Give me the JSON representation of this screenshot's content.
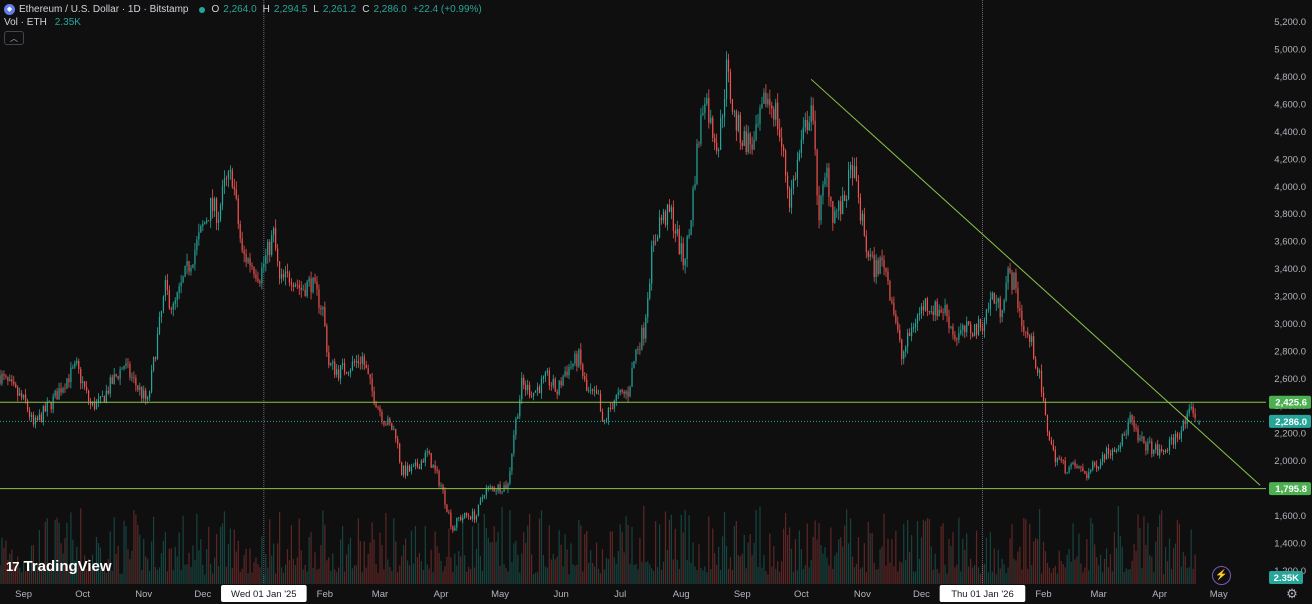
{
  "header": {
    "title": "Ethereum / U.S. Dollar · 1D · Bitstamp",
    "ohlc": [
      {
        "key": "O",
        "value": "2,264.0"
      },
      {
        "key": "H",
        "value": "2,294.5"
      },
      {
        "key": "L",
        "value": "2,261.2"
      },
      {
        "key": "C",
        "value": "2,286.0"
      },
      {
        "key": "",
        "value": "+22.4 (+0.99%)"
      }
    ],
    "volume_label": "Vol · ETH",
    "volume_value": "2.35K"
  },
  "branding": {
    "logo_text": "TradingView",
    "logo_mark": "17"
  },
  "colors": {
    "background": "#0f0f0f",
    "up": "#26a69a",
    "down": "#ef5350",
    "line": "#8bc34a",
    "axis_text": "#b2b5be"
  },
  "chart_data": {
    "type": "candlestick",
    "symbol": "ETHUSD",
    "interval": "1D",
    "exchange": "Bitstamp",
    "ylim": [
      1100,
      5300
    ],
    "y_ticks": [
      1200,
      1400,
      1600,
      1800,
      2000,
      2200,
      2400,
      2600,
      2800,
      3000,
      3200,
      3400,
      3600,
      3800,
      4000,
      4200,
      4400,
      4600,
      4800,
      5000,
      5200
    ],
    "y_tick_labels": [
      "1,200.0",
      "1,400.0",
      "1,600.0",
      "1,800.0",
      "2,000.0",
      "2,200.0",
      "2,400.0",
      "2,600.0",
      "2,800.0",
      "3,000.0",
      "3,200.0",
      "3,400.0",
      "3,600.0",
      "3,800.0",
      "4,000.0",
      "4,200.0",
      "4,400.0",
      "4,600.0",
      "4,800.0",
      "5,000.0",
      "5,200.0"
    ],
    "x_ticks": [
      {
        "label": "Sep",
        "date": "2024-09-01"
      },
      {
        "label": "Oct",
        "date": "2024-10-01"
      },
      {
        "label": "Nov",
        "date": "2024-11-01"
      },
      {
        "label": "Dec",
        "date": "2024-12-01"
      },
      {
        "label": "Wed 01 Jan '25",
        "date": "2025-01-01",
        "highlight": true
      },
      {
        "label": "Feb",
        "date": "2025-02-01"
      },
      {
        "label": "Mar",
        "date": "2025-03-01"
      },
      {
        "label": "Apr",
        "date": "2025-04-01"
      },
      {
        "label": "May",
        "date": "2025-05-01"
      },
      {
        "label": "Jun",
        "date": "2025-06-01"
      },
      {
        "label": "Jul",
        "date": "2025-07-01"
      },
      {
        "label": "Aug",
        "date": "2025-08-01"
      },
      {
        "label": "Sep",
        "date": "2025-09-01"
      },
      {
        "label": "Oct",
        "date": "2025-10-01"
      },
      {
        "label": "Nov",
        "date": "2025-11-01"
      },
      {
        "label": "Dec",
        "date": "2025-12-01"
      },
      {
        "label": "Thu 01 Jan '26",
        "date": "2026-01-01",
        "highlight": true
      },
      {
        "label": "Feb",
        "date": "2026-02-01"
      },
      {
        "label": "Mar",
        "date": "2026-03-01"
      },
      {
        "label": "Apr",
        "date": "2026-04-01"
      },
      {
        "label": "May",
        "date": "2026-05-01"
      }
    ],
    "x_range": [
      "2024-08-20",
      "2026-05-25"
    ],
    "close_path": [
      [
        "2024-08-20",
        2620
      ],
      [
        "2024-09-02",
        2420
      ],
      [
        "2024-09-06",
        2250
      ],
      [
        "2024-09-15",
        2420
      ],
      [
        "2024-09-23",
        2600
      ],
      [
        "2024-09-28",
        2680
      ],
      [
        "2024-10-05",
        2400
      ],
      [
        "2024-10-10",
        2420
      ],
      [
        "2024-10-15",
        2550
      ],
      [
        "2024-10-22",
        2700
      ],
      [
        "2024-10-26",
        2600
      ],
      [
        "2024-11-03",
        2420
      ],
      [
        "2024-11-08",
        2900
      ],
      [
        "2024-11-12",
        3250
      ],
      [
        "2024-11-16",
        3100
      ],
      [
        "2024-11-22",
        3350
      ],
      [
        "2024-11-26",
        3500
      ],
      [
        "2024-12-01",
        3700
      ],
      [
        "2024-12-05",
        3850
      ],
      [
        "2024-12-09",
        3800
      ],
      [
        "2024-12-12",
        4000
      ],
      [
        "2024-12-16",
        4080
      ],
      [
        "2024-12-21",
        3500
      ],
      [
        "2024-12-25",
        3450
      ],
      [
        "2024-12-30",
        3350
      ],
      [
        "2025-01-06",
        3650
      ],
      [
        "2025-01-09",
        3300
      ],
      [
        "2025-01-15",
        3350
      ],
      [
        "2025-01-20",
        3250
      ],
      [
        "2025-01-25",
        3300
      ],
      [
        "2025-01-31",
        3100
      ],
      [
        "2025-02-03",
        2700
      ],
      [
        "2025-02-08",
        2650
      ],
      [
        "2025-02-15",
        2700
      ],
      [
        "2025-02-20",
        2750
      ],
      [
        "2025-02-25",
        2500
      ],
      [
        "2025-03-03",
        2300
      ],
      [
        "2025-03-09",
        2200
      ],
      [
        "2025-03-12",
        1920
      ],
      [
        "2025-03-18",
        1930
      ],
      [
        "2025-03-25",
        2050
      ],
      [
        "2025-04-01",
        1820
      ],
      [
        "2025-04-07",
        1500
      ],
      [
        "2025-04-10",
        1580
      ],
      [
        "2025-04-15",
        1600
      ],
      [
        "2025-04-19",
        1600
      ],
      [
        "2025-04-23",
        1780
      ],
      [
        "2025-04-28",
        1800
      ],
      [
        "2025-05-05",
        1820
      ],
      [
        "2025-05-08",
        2200
      ],
      [
        "2025-05-12",
        2550
      ],
      [
        "2025-05-18",
        2500
      ],
      [
        "2025-05-25",
        2600
      ],
      [
        "2025-05-30",
        2500
      ],
      [
        "2025-06-03",
        2650
      ],
      [
        "2025-06-10",
        2750
      ],
      [
        "2025-06-14",
        2500
      ],
      [
        "2025-06-20",
        2450
      ],
      [
        "2025-06-22",
        2250
      ],
      [
        "2025-06-28",
        2450
      ],
      [
        "2025-07-05",
        2500
      ],
      [
        "2025-07-09",
        2800
      ],
      [
        "2025-07-13",
        2950
      ],
      [
        "2025-07-17",
        3500
      ],
      [
        "2025-07-21",
        3750
      ],
      [
        "2025-07-27",
        3800
      ],
      [
        "2025-08-02",
        3450
      ],
      [
        "2025-08-05",
        3650
      ],
      [
        "2025-08-09",
        4250
      ],
      [
        "2025-08-13",
        4700
      ],
      [
        "2025-08-16",
        4450
      ],
      [
        "2025-08-20",
        4300
      ],
      [
        "2025-08-24",
        4850
      ],
      [
        "2025-08-28",
        4500
      ],
      [
        "2025-09-01",
        4350
      ],
      [
        "2025-09-07",
        4300
      ],
      [
        "2025-09-13",
        4650
      ],
      [
        "2025-09-18",
        4550
      ],
      [
        "2025-09-22",
        4200
      ],
      [
        "2025-09-25",
        3900
      ],
      [
        "2025-10-01",
        4300
      ],
      [
        "2025-10-06",
        4600
      ],
      [
        "2025-10-10",
        3800
      ],
      [
        "2025-10-14",
        4100
      ],
      [
        "2025-10-17",
        3800
      ],
      [
        "2025-10-22",
        3850
      ],
      [
        "2025-10-27",
        4150
      ],
      [
        "2025-11-03",
        3550
      ],
      [
        "2025-11-07",
        3400
      ],
      [
        "2025-11-12",
        3450
      ],
      [
        "2025-11-17",
        3100
      ],
      [
        "2025-11-21",
        2750
      ],
      [
        "2025-11-27",
        3000
      ],
      [
        "2025-12-03",
        3150
      ],
      [
        "2025-12-08",
        3100
      ],
      [
        "2025-12-13",
        3100
      ],
      [
        "2025-12-18",
        2900
      ],
      [
        "2025-12-24",
        2950
      ],
      [
        "2025-12-31",
        2970
      ],
      [
        "2026-01-06",
        3200
      ],
      [
        "2026-01-10",
        3100
      ],
      [
        "2026-01-14",
        3350
      ],
      [
        "2026-01-17",
        3300
      ],
      [
        "2026-01-22",
        2950
      ],
      [
        "2026-01-26",
        2850
      ],
      [
        "2026-01-30",
        2600
      ],
      [
        "2026-02-02",
        2300
      ],
      [
        "2026-02-06",
        2050
      ],
      [
        "2026-02-12",
        1950
      ],
      [
        "2026-02-18",
        1950
      ],
      [
        "2026-02-23",
        1900
      ],
      [
        "2026-02-27",
        1960
      ],
      [
        "2026-03-04",
        2050
      ],
      [
        "2026-03-09",
        2100
      ],
      [
        "2026-03-13",
        2150
      ],
      [
        "2026-03-17",
        2300
      ],
      [
        "2026-03-21",
        2150
      ],
      [
        "2026-03-27",
        2100
      ],
      [
        "2026-04-02",
        2050
      ],
      [
        "2026-04-08",
        2150
      ],
      [
        "2026-04-13",
        2250
      ],
      [
        "2026-04-18",
        2380
      ],
      [
        "2026-04-20",
        2264
      ]
    ],
    "last_candle": {
      "date": "2026-04-21",
      "open": 2264.0,
      "high": 2294.5,
      "low": 2261.2,
      "close": 2286.0,
      "change": "+22.4 (+0.99%)"
    },
    "horizontal_levels": [
      {
        "value": 2425.6,
        "label": "2,425.6"
      },
      {
        "value": 1795.8,
        "label": "1,795.8"
      }
    ],
    "current_price": {
      "value": 2286.0,
      "label": "2,286.0"
    },
    "volume_badge": {
      "label": "2.35K"
    },
    "trendline": {
      "start": [
        "2025-10-06",
        4780
      ],
      "end": [
        "2026-05-22",
        1820
      ]
    },
    "volume_pane": {
      "max_volume": 250
    },
    "grid": false
  }
}
